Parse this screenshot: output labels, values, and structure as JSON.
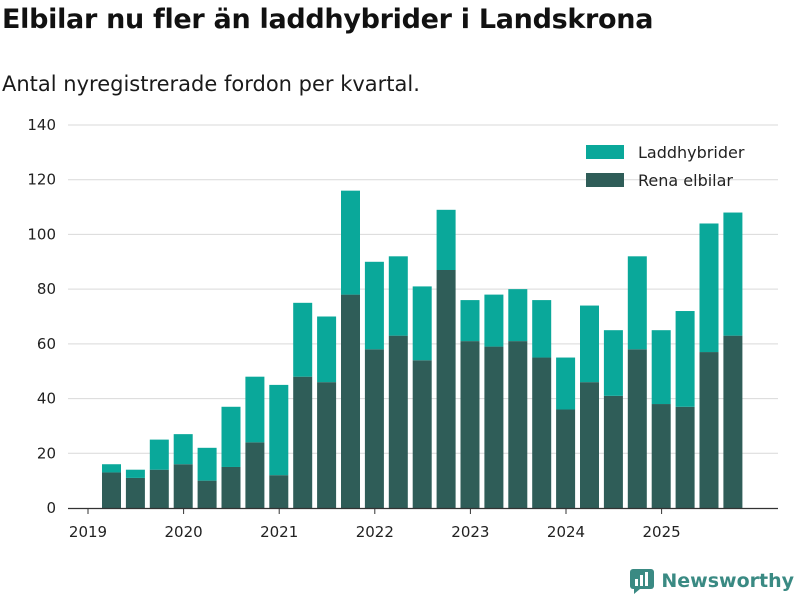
{
  "title": "Elbilar nu fler än laddhybrider i Landskrona",
  "subtitle": "Antal nyregistrerade fordon per kvartal.",
  "brand": {
    "name": "Newsworthy",
    "icon": "newsworthy-logo-icon"
  },
  "colors": {
    "laddhybrider": "#0aa89a",
    "rena_elbilar": "#2f5d58",
    "grid": "#d9d9d9",
    "axis": "#333333"
  },
  "chart_data": {
    "type": "bar",
    "stacked": true,
    "title": "Elbilar nu fler än laddhybrider i Landskrona",
    "subtitle": "Antal nyregistrerade fordon per kvartal.",
    "xlabel": "",
    "ylabel": "",
    "ylim": [
      0,
      140
    ],
    "yticks": [
      0,
      20,
      40,
      60,
      80,
      100,
      120,
      140
    ],
    "xtick_labels": [
      "2019",
      "2020",
      "2021",
      "2022",
      "2023",
      "2024",
      "2025"
    ],
    "legend_position": "top-right",
    "categories": [
      "2019Q2",
      "2019Q3",
      "2019Q4",
      "2020Q1",
      "2020Q2",
      "2020Q3",
      "2020Q4",
      "2021Q1",
      "2021Q2",
      "2021Q3",
      "2021Q4",
      "2022Q1",
      "2022Q2",
      "2022Q3",
      "2022Q4",
      "2023Q1",
      "2023Q2",
      "2023Q3",
      "2023Q4",
      "2024Q1",
      "2024Q2",
      "2024Q3",
      "2024Q4",
      "2025Q1",
      "2025Q2",
      "2025Q3",
      "2025Q4"
    ],
    "series": [
      {
        "name": "Rena elbilar",
        "color": "#2f5d58",
        "values": [
          13,
          11,
          14,
          16,
          10,
          15,
          24,
          12,
          48,
          46,
          78,
          58,
          63,
          54,
          87,
          61,
          59,
          61,
          55,
          36,
          46,
          41,
          58,
          38,
          37,
          57,
          63
        ]
      },
      {
        "name": "Laddhybrider",
        "color": "#0aa89a",
        "values": [
          3,
          3,
          11,
          11,
          12,
          22,
          24,
          33,
          27,
          24,
          38,
          32,
          29,
          27,
          22,
          15,
          19,
          19,
          21,
          19,
          28,
          24,
          34,
          27,
          35,
          47,
          45
        ]
      }
    ],
    "legend": [
      "Laddhybrider",
      "Rena elbilar"
    ]
  }
}
